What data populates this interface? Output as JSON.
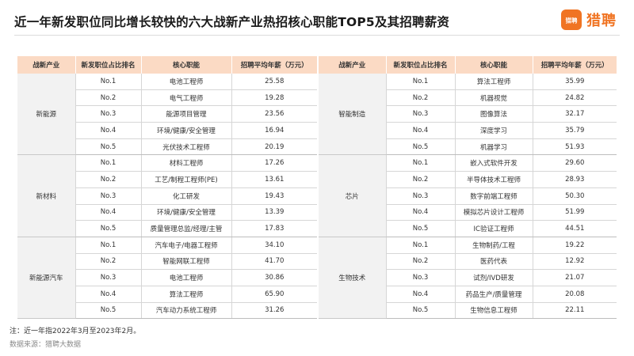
{
  "title": "近一年新发职位同比增长较快的六大战新产业热招核心职能TOP5及其招聘薪资",
  "logo": {
    "text": "猎聘",
    "mark_text": "猎聘",
    "color": "#f07423"
  },
  "headers": [
    "战新产业",
    "新发职位占比排名",
    "核心职能",
    "招聘平均年薪（万元）"
  ],
  "left_groups": [
    {
      "industry": "新能源",
      "rows": [
        {
          "rank": "No.1",
          "role": "电池工程师",
          "salary": "25.58"
        },
        {
          "rank": "No.2",
          "role": "电气工程师",
          "salary": "19.28"
        },
        {
          "rank": "No.3",
          "role": "能源项目管理",
          "salary": "23.56"
        },
        {
          "rank": "No.4",
          "role": "环境/健康/安全管理",
          "salary": "16.94"
        },
        {
          "rank": "No.5",
          "role": "光伏技术工程师",
          "salary": "20.19"
        }
      ]
    },
    {
      "industry": "新材料",
      "rows": [
        {
          "rank": "No.1",
          "role": "材料工程师",
          "salary": "17.26"
        },
        {
          "rank": "No.2",
          "role": "工艺/制程工程师(PE)",
          "salary": "13.61"
        },
        {
          "rank": "No.3",
          "role": "化工研发",
          "salary": "19.43"
        },
        {
          "rank": "No.4",
          "role": "环境/健康/安全管理",
          "salary": "13.39"
        },
        {
          "rank": "No.5",
          "role": "质量管理总监/经理/主管",
          "salary": "17.83"
        }
      ]
    },
    {
      "industry": "新能源汽车",
      "rows": [
        {
          "rank": "No.1",
          "role": "汽车电子/电器工程师",
          "salary": "34.10"
        },
        {
          "rank": "No.2",
          "role": "智能网联工程师",
          "salary": "41.70"
        },
        {
          "rank": "No.3",
          "role": "电池工程师",
          "salary": "30.86"
        },
        {
          "rank": "No.4",
          "role": "算法工程师",
          "salary": "65.90"
        },
        {
          "rank": "No.5",
          "role": "汽车动力系统工程师",
          "salary": "31.26"
        }
      ]
    }
  ],
  "right_groups": [
    {
      "industry": "智能制造",
      "rows": [
        {
          "rank": "No.1",
          "role": "算法工程师",
          "salary": "35.99"
        },
        {
          "rank": "No.2",
          "role": "机器视觉",
          "salary": "24.82"
        },
        {
          "rank": "No.3",
          "role": "图像算法",
          "salary": "32.17"
        },
        {
          "rank": "No.4",
          "role": "深度学习",
          "salary": "35.79"
        },
        {
          "rank": "No.5",
          "role": "机器学习",
          "salary": "51.93"
        }
      ]
    },
    {
      "industry": "芯片",
      "rows": [
        {
          "rank": "No.1",
          "role": "嵌入式软件开发",
          "salary": "29.60"
        },
        {
          "rank": "No.2",
          "role": "半导体技术工程师",
          "salary": "28.93"
        },
        {
          "rank": "No.3",
          "role": "数字前端工程师",
          "salary": "50.30"
        },
        {
          "rank": "No.4",
          "role": "模拟芯片设计工程师",
          "salary": "51.99"
        },
        {
          "rank": "No.5",
          "role": "IC验证工程师",
          "salary": "44.51"
        }
      ]
    },
    {
      "industry": "生物技术",
      "rows": [
        {
          "rank": "No.1",
          "role": "生物制药/工程",
          "salary": "19.22"
        },
        {
          "rank": "No.2",
          "role": "医药代表",
          "salary": "12.92"
        },
        {
          "rank": "No.3",
          "role": "试剂/IVD研发",
          "salary": "21.07"
        },
        {
          "rank": "No.4",
          "role": "药品生产/质量管理",
          "salary": "20.08"
        },
        {
          "rank": "No.5",
          "role": "生物信息工程师",
          "salary": "22.11"
        }
      ]
    }
  ],
  "note": "注：近一年指2022年3月至2023年2月。",
  "source": "数据来源：猎聘大数据"
}
